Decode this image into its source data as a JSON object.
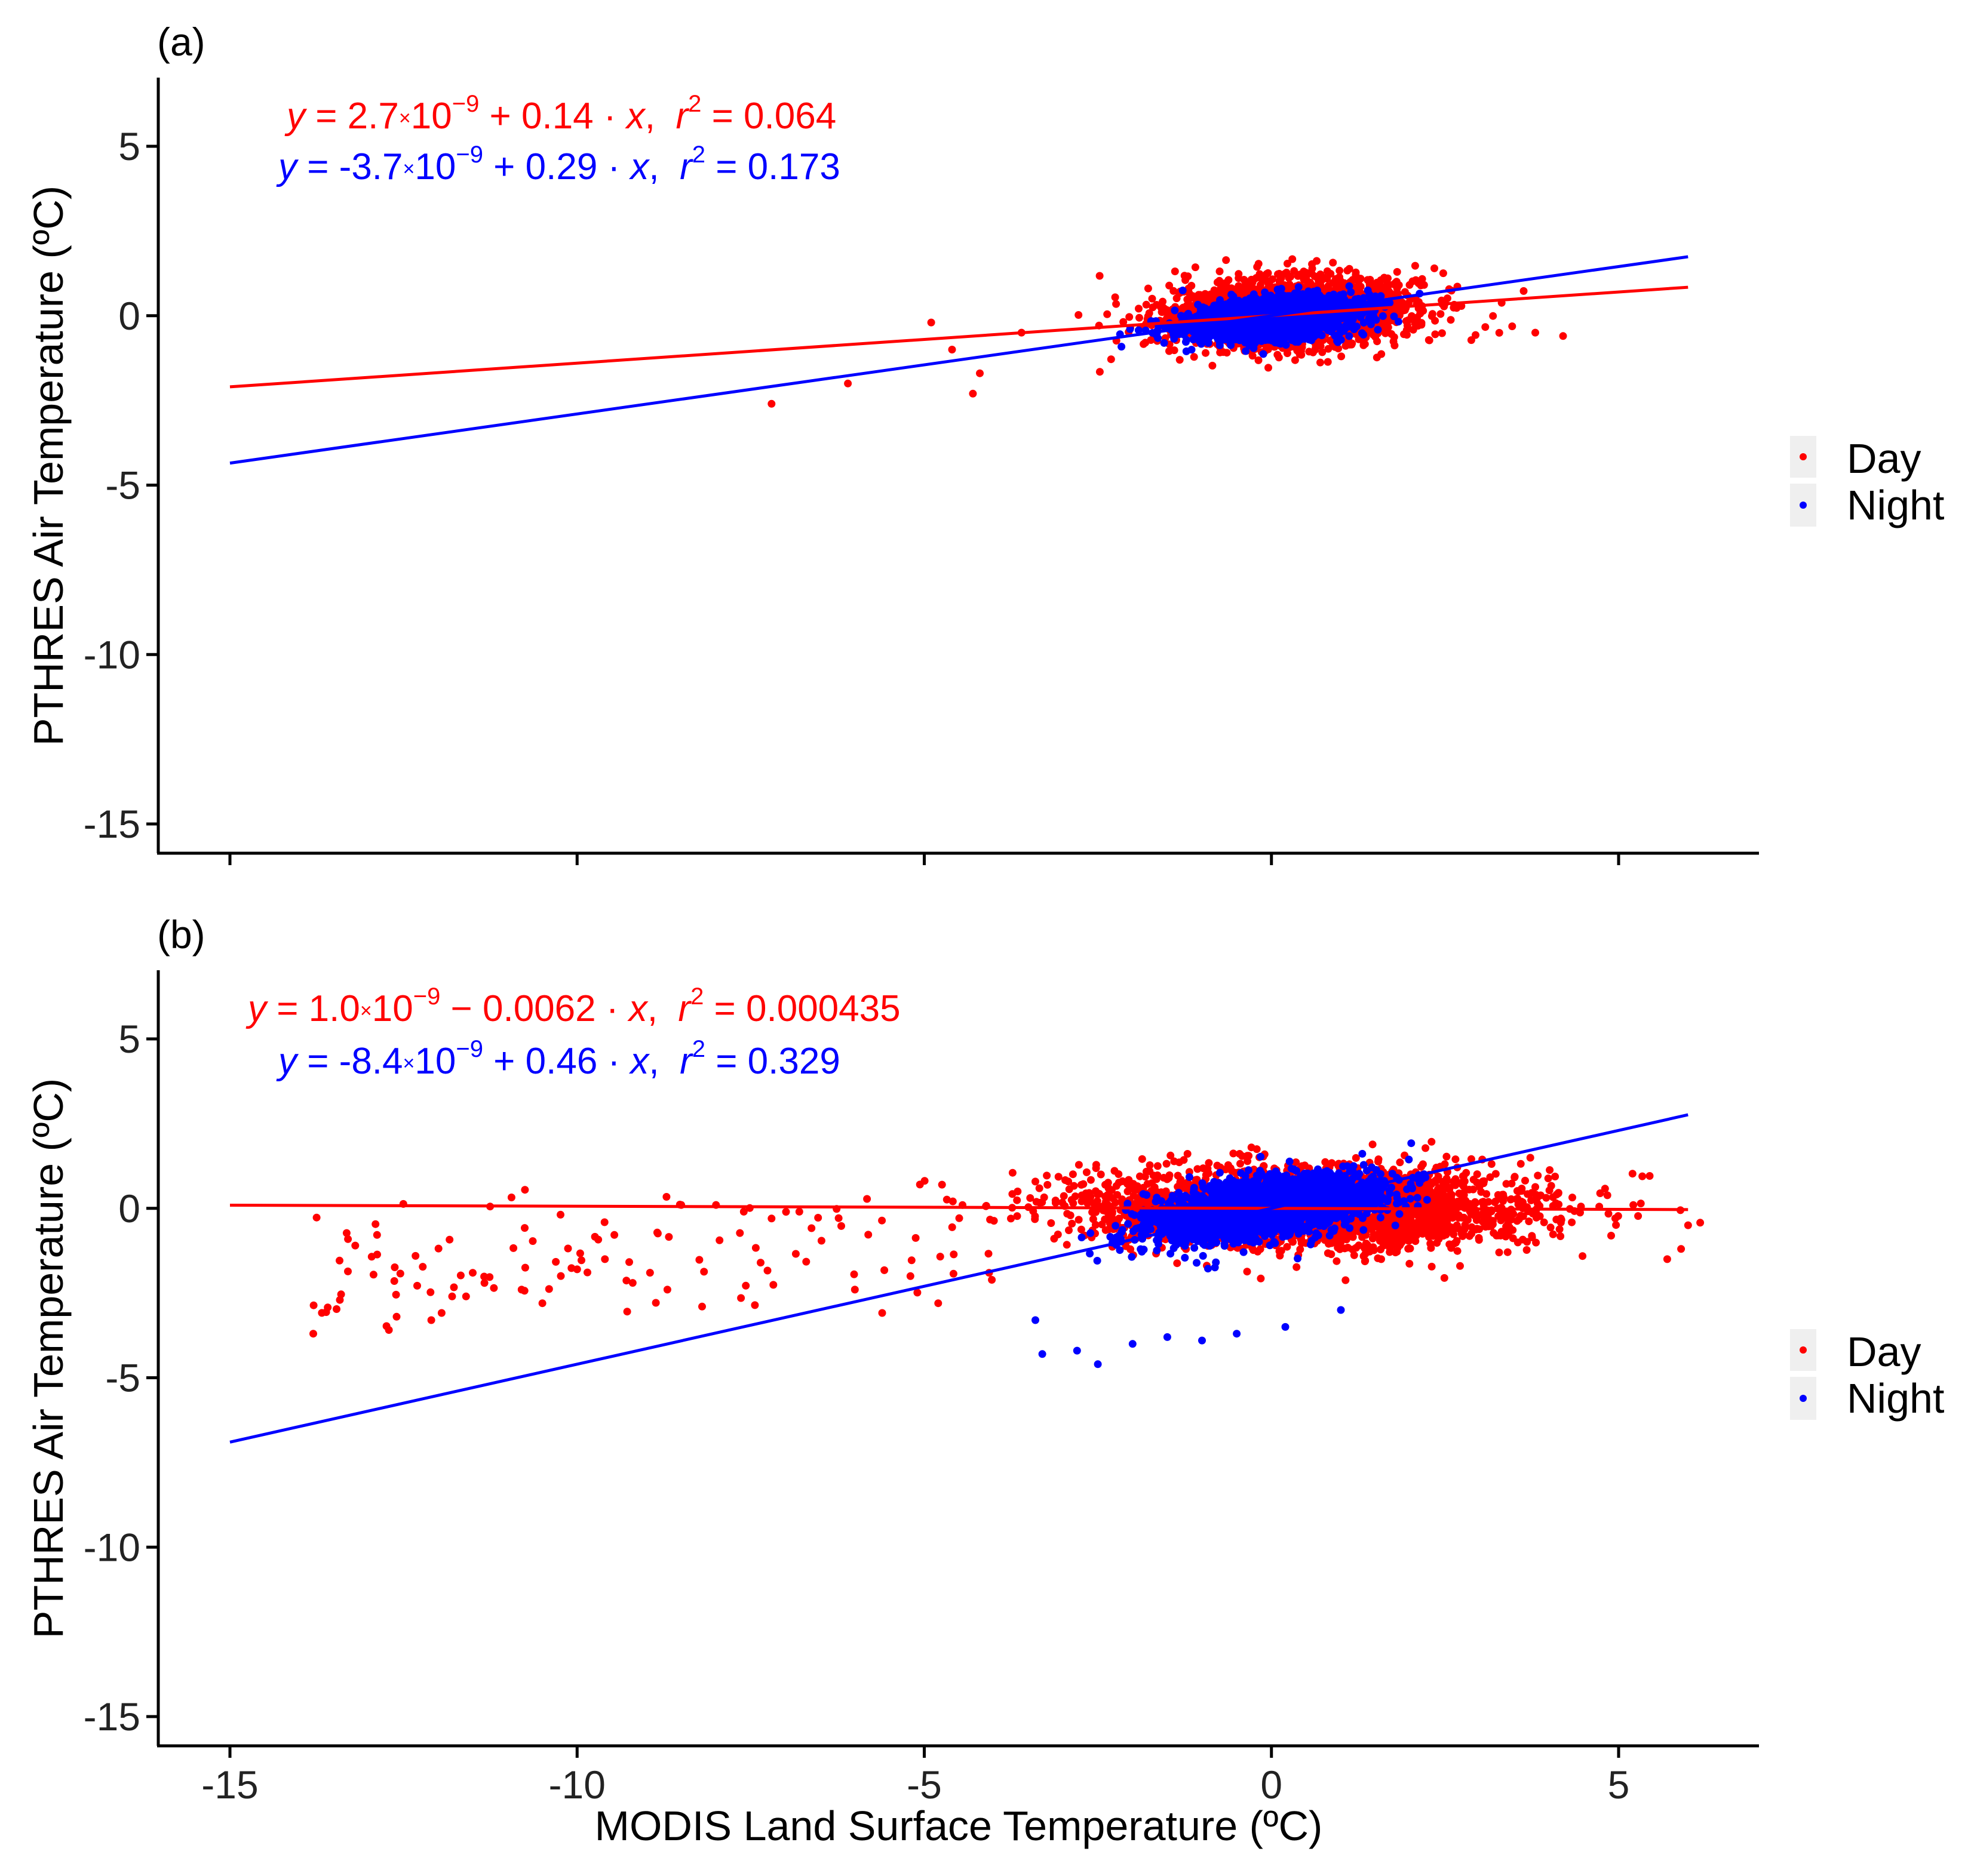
{
  "chart_data": [
    {
      "type": "scatter",
      "panel_label": "(a)",
      "xlabel": "",
      "ylabel": "PTHRES Air Temperature (ºC)",
      "xlim": [
        -16.2,
        7.0
      ],
      "ylim": [
        -16.0,
        7.0
      ],
      "xticks": [
        -15,
        -10,
        -5,
        0,
        5
      ],
      "yticks": [
        -15,
        -10,
        -5,
        0,
        5
      ],
      "xtick_labels_shown": false,
      "series": [
        {
          "name": "Day",
          "color": "#ff0000",
          "equation": "y = 2.7×10⁻⁹ + 0.14 · x,  r² = 0.064",
          "equation_parts": {
            "y": "y",
            "eq": " = ",
            "a": "2.7",
            "times": "×",
            "base": "10",
            "exp": "−9",
            "op": " + ",
            "b": "0.14",
            "dot": " · ",
            "x": "x",
            "comma": ",  ",
            "r": "r",
            "r2exp": "2",
            "r2eq": " = ",
            "r2": "0.064"
          },
          "intercept": 2.7e-09,
          "slope": 0.14,
          "r2": 0.064,
          "cloud": {
            "x_center": 0.3,
            "x_spread": 1.6,
            "y_center": 0.1,
            "y_spread": 0.9,
            "n": 2400
          },
          "outliers": [
            [
              -7.2,
              -2.6
            ],
            [
              -6.1,
              -2.0
            ],
            [
              -4.3,
              -2.3
            ],
            [
              -4.6,
              -1.0
            ],
            [
              -4.9,
              -0.2
            ],
            [
              -4.2,
              -1.7
            ],
            [
              3.8,
              -0.5
            ],
            [
              4.2,
              -0.6
            ],
            [
              -3.6,
              -0.5
            ]
          ]
        },
        {
          "name": "Night",
          "color": "#0000ff",
          "equation": "y = -3.7×10⁻⁹ + 0.29 · x,  r² = 0.173",
          "equation_parts": {
            "y": "y",
            "eq": " = ",
            "a": "-3.7",
            "times": "×",
            "base": "10",
            "exp": "−9",
            "op": " + ",
            "b": "0.29",
            "dot": " · ",
            "x": "x",
            "comma": ",  ",
            "r": "r",
            "r2exp": "2",
            "r2eq": " = ",
            "r2": "0.173"
          },
          "intercept": -3.7e-09,
          "slope": 0.29,
          "r2": 0.173,
          "cloud": {
            "x_center": 0.0,
            "x_spread": 1.1,
            "y_center": -0.1,
            "y_spread": 0.55,
            "n": 2200
          },
          "outliers": []
        }
      ],
      "fit_x_range": [
        -15,
        6
      ],
      "legend": {
        "position": "right",
        "entries": [
          "Day",
          "Night"
        ]
      }
    },
    {
      "type": "scatter",
      "panel_label": "(b)",
      "xlabel": "MODIS Land Surface Temperature (ºC)",
      "ylabel": "PTHRES Air Temperature (ºC)",
      "xlim": [
        -16.2,
        7.0
      ],
      "ylim": [
        -16.0,
        7.0
      ],
      "xticks": [
        -15,
        -10,
        -5,
        0,
        5
      ],
      "yticks": [
        -15,
        -10,
        -5,
        0,
        5
      ],
      "xtick_labels_shown": true,
      "series": [
        {
          "name": "Day",
          "color": "#ff0000",
          "equation": "y = 1.0×10⁻⁹ − 0.0062 · x,  r² = 0.000435",
          "equation_parts": {
            "y": "y",
            "eq": " = ",
            "a": "1.0",
            "times": "×",
            "base": "10",
            "exp": "−9",
            "op": " − ",
            "b": "0.0062",
            "dot": " · ",
            "x": "x",
            "comma": ",  ",
            "r": "r",
            "r2exp": "2",
            "r2eq": " = ",
            "r2": "0.000435"
          },
          "intercept": 1e-09,
          "slope": -0.0062,
          "r2": 0.000435,
          "cloud": {
            "x_center": 0.5,
            "x_spread": 2.9,
            "y_center": 0.0,
            "y_spread": 1.05,
            "n": 3000
          },
          "tail": {
            "x_from": -13.8,
            "x_to": -4.0,
            "n": 110
          },
          "outliers": [
            [
              -13.8,
              -3.7
            ],
            [
              -12.6,
              -3.2
            ],
            [
              -12.1,
              -3.3
            ],
            [
              -11.6,
              -2.6
            ],
            [
              -11.8,
              -2.6
            ],
            [
              -10.8,
              -2.4
            ],
            [
              -10.5,
              -2.8
            ],
            [
              -10.0,
              -1.8
            ],
            [
              -9.6,
              -1.5
            ],
            [
              -9.2,
              -2.2
            ],
            [
              -8.7,
              -2.4
            ],
            [
              -8.2,
              -2.9
            ],
            [
              -8.5,
              0.1
            ],
            [
              -8.0,
              0.1
            ],
            [
              -7.6,
              -0.1
            ],
            [
              -7.2,
              -0.3
            ],
            [
              -6.8,
              -0.1
            ],
            [
              -6.0,
              -2.4
            ],
            [
              -5.2,
              -2.0
            ],
            [
              -4.8,
              -2.8
            ],
            [
              5.7,
              -1.5
            ],
            [
              6.0,
              -0.5
            ],
            [
              5.9,
              -1.2
            ]
          ]
        },
        {
          "name": "Night",
          "color": "#0000ff",
          "equation": "y = -8.4×10⁻⁹ + 0.46 · x,  r² = 0.329",
          "equation_parts": {
            "y": "y",
            "eq": " = ",
            "a": "-8.4",
            "times": "×",
            "base": "10",
            "exp": "−9",
            "op": " + ",
            "b": "0.46",
            "dot": " · ",
            "x": "x",
            "comma": ",  ",
            "r": "r",
            "r2exp": "2",
            "r2eq": " = ",
            "r2": "0.329"
          },
          "intercept": -8.4e-09,
          "slope": 0.46,
          "r2": 0.329,
          "cloud": {
            "x_center": -0.1,
            "x_spread": 1.45,
            "y_center": 0.0,
            "y_spread": 0.75,
            "n": 2600
          },
          "outliers": [
            [
              -3.4,
              -3.3
            ],
            [
              -3.3,
              -4.3
            ],
            [
              -2.5,
              -4.6
            ],
            [
              -2.0,
              -4.0
            ],
            [
              -1.5,
              -3.8
            ],
            [
              -0.5,
              -3.7
            ],
            [
              0.2,
              -3.5
            ],
            [
              1.0,
              -3.0
            ],
            [
              -2.8,
              -4.2
            ],
            [
              -1.0,
              -3.9
            ]
          ]
        }
      ],
      "fit_x_range": [
        -15,
        6
      ],
      "legend": {
        "position": "right",
        "entries": [
          "Day",
          "Night"
        ]
      }
    }
  ]
}
